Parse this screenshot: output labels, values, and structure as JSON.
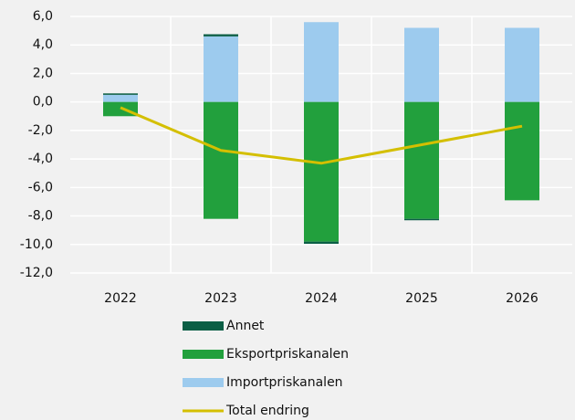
{
  "chart_data": {
    "type": "bar",
    "categories": [
      "2022",
      "2023",
      "2024",
      "2025",
      "2026"
    ],
    "stacked": true,
    "series": [
      {
        "name": "Annet",
        "color": "#0b5e45",
        "values": [
          0.1,
          0.15,
          -0.15,
          -0.1,
          0
        ]
      },
      {
        "name": "Eksportpriskanalen",
        "color": "#22a03d",
        "values": [
          -1.0,
          -8.2,
          -9.8,
          -8.2,
          -6.9
        ]
      },
      {
        "name": "Importpriskanalen",
        "color": "#9dcbee",
        "values": [
          0.5,
          4.6,
          5.6,
          5.2,
          5.2
        ]
      },
      {
        "name": "Total endring",
        "type": "line",
        "color": "#d4bf00",
        "values": [
          -0.4,
          -3.4,
          -4.3,
          -3.0,
          -1.7
        ]
      }
    ],
    "ylim": [
      -12,
      6
    ],
    "yticks": [
      {
        "value": -12,
        "label": "-12,0"
      },
      {
        "value": -10,
        "label": "-10,0"
      },
      {
        "value": -8,
        "label": "-8,0"
      },
      {
        "value": -6,
        "label": "-6,0"
      },
      {
        "value": -4,
        "label": "-4,0"
      },
      {
        "value": -2,
        "label": "-2,0"
      },
      {
        "value": 0,
        "label": "0,0"
      },
      {
        "value": 2,
        "label": "2,0"
      },
      {
        "value": 4,
        "label": "4,0"
      },
      {
        "value": 6,
        "label": "6,0"
      }
    ],
    "grid": true,
    "legend": "bottom"
  }
}
